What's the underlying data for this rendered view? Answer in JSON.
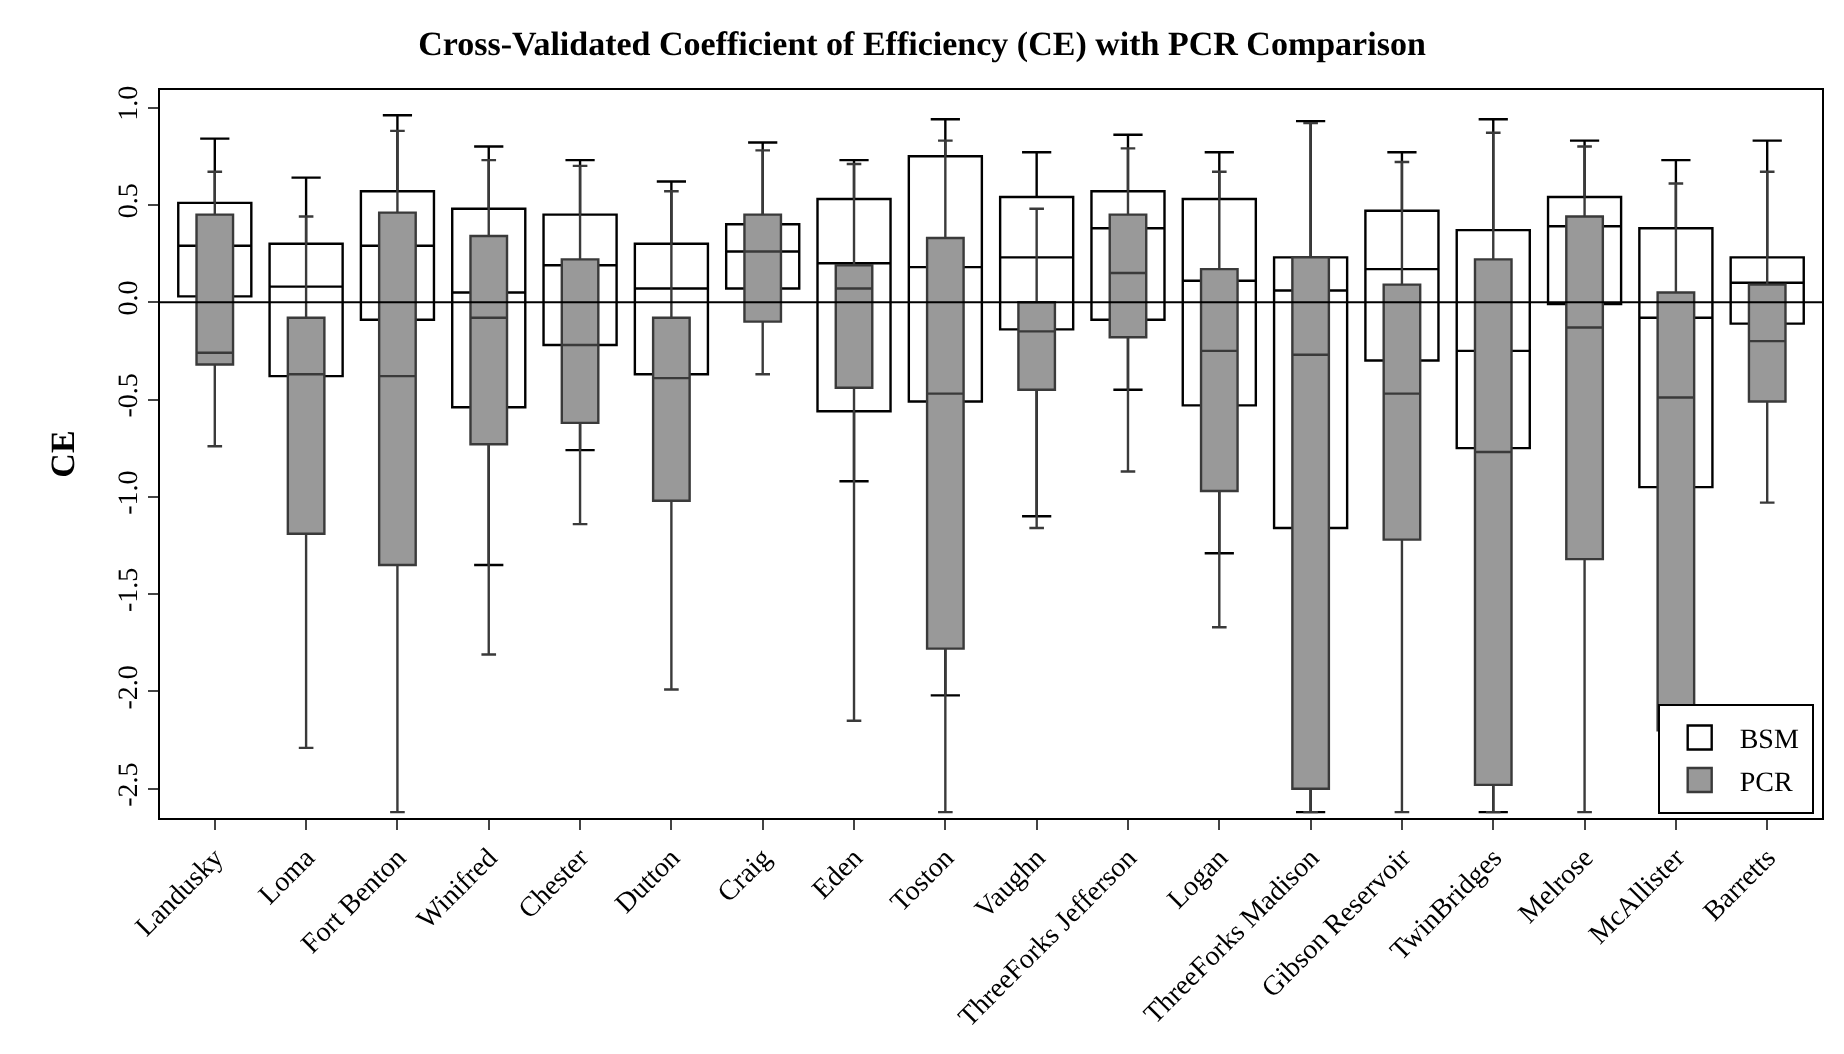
{
  "chart_data": {
    "type": "box",
    "title": "Cross-Validated Coefficient of Efficiency (CE) with PCR Comparison",
    "ylabel": "CE",
    "categories": [
      "Landusky",
      "Loma",
      "Fort Benton",
      "Winifred",
      "Chester",
      "Dutton",
      "Craig",
      "Eden",
      "Toston",
      "Vaughn",
      "ThreeForks Jefferson",
      "Logan",
      "ThreeForks Madison",
      "Gibson Reservoir",
      "TwinBridges",
      "Melrose",
      "McAllister",
      "Barretts"
    ],
    "ylim": [
      -2.65,
      1.09
    ],
    "yticks": [
      -2.5,
      {
        "value": -2,
        "label": "-2.0"
      },
      -1.5,
      {
        "value": -1,
        "label": "-1.0"
      },
      -0.5,
      {
        "value": 0,
        "label": "0.0"
      },
      0.5,
      {
        "value": 1,
        "label": "1.0"
      }
    ],
    "legend": "bottom right",
    "ref_lines": [
      {
        "axis": "y",
        "value": 0,
        "color": "#000000"
      }
    ],
    "series": [
      {
        "name": "BSM",
        "color": "#ffffff",
        "boxes": [
          {
            "low": 0.03,
            "q1": 0.03,
            "median": 0.29,
            "q3": 0.51,
            "high": 0.84
          },
          {
            "low": -0.38,
            "q1": -0.38,
            "median": 0.08,
            "q3": 0.3,
            "high": 0.64
          },
          {
            "low": -0.09,
            "q1": -0.09,
            "median": 0.29,
            "q3": 0.57,
            "high": 0.96
          },
          {
            "low": -1.35,
            "q1": -0.54,
            "median": 0.05,
            "q3": 0.48,
            "high": 0.8
          },
          {
            "low": -0.76,
            "q1": -0.22,
            "median": 0.19,
            "q3": 0.45,
            "high": 0.73
          },
          {
            "low": -0.37,
            "q1": -0.37,
            "median": 0.07,
            "q3": 0.3,
            "high": 0.62
          },
          {
            "low": 0.07,
            "q1": 0.07,
            "median": 0.26,
            "q3": 0.4,
            "high": 0.82
          },
          {
            "low": -0.92,
            "q1": -0.56,
            "median": 0.2,
            "q3": 0.53,
            "high": 0.73
          },
          {
            "low": -2.02,
            "q1": -0.51,
            "median": 0.18,
            "q3": 0.75,
            "high": 0.94
          },
          {
            "low": -1.1,
            "q1": -0.14,
            "median": 0.23,
            "q3": 0.54,
            "high": 0.77
          },
          {
            "low": -0.45,
            "q1": -0.09,
            "median": 0.38,
            "q3": 0.57,
            "high": 0.86
          },
          {
            "low": -1.29,
            "q1": -0.53,
            "median": 0.11,
            "q3": 0.53,
            "high": 0.77
          },
          {
            "low": -2.62,
            "q1": -1.16,
            "median": 0.06,
            "q3": 0.23,
            "high": 0.93
          },
          {
            "low": -0.3,
            "q1": -0.3,
            "median": 0.17,
            "q3": 0.47,
            "high": 0.77
          },
          {
            "low": -2.62,
            "q1": -0.75,
            "median": -0.25,
            "q3": 0.37,
            "high": 0.94
          },
          {
            "low": -0.01,
            "q1": -0.01,
            "median": 0.39,
            "q3": 0.54,
            "high": 0.83
          },
          {
            "low": -2.62,
            "q1": -0.95,
            "median": -0.08,
            "q3": 0.38,
            "high": 0.73
          },
          {
            "low": -0.11,
            "q1": -0.11,
            "median": 0.1,
            "q3": 0.23,
            "high": 0.83
          }
        ]
      },
      {
        "name": "PCR",
        "color": "#999999",
        "boxes": [
          {
            "low": -0.74,
            "q1": -0.32,
            "median": -0.26,
            "q3": 0.45,
            "high": 0.67
          },
          {
            "low": -2.29,
            "q1": -1.19,
            "median": -0.37,
            "q3": -0.08,
            "high": 0.44
          },
          {
            "low": -2.62,
            "q1": -1.35,
            "median": -0.38,
            "q3": 0.46,
            "high": 0.88
          },
          {
            "low": -1.81,
            "q1": -0.73,
            "median": -0.08,
            "q3": 0.34,
            "high": 0.73
          },
          {
            "low": -1.14,
            "q1": -0.62,
            "median": -0.22,
            "q3": 0.22,
            "high": 0.7
          },
          {
            "low": -1.99,
            "q1": -1.02,
            "median": -0.39,
            "q3": -0.08,
            "high": 0.57
          },
          {
            "low": -0.37,
            "q1": -0.1,
            "median": 0.26,
            "q3": 0.45,
            "high": 0.78
          },
          {
            "low": -2.15,
            "q1": -0.44,
            "median": 0.07,
            "q3": 0.19,
            "high": 0.71
          },
          {
            "low": -2.62,
            "q1": -1.78,
            "median": -0.47,
            "q3": 0.33,
            "high": 0.83
          },
          {
            "low": -1.16,
            "q1": -0.45,
            "median": -0.15,
            "q3": 0.0,
            "high": 0.48
          },
          {
            "low": -0.87,
            "q1": -0.18,
            "median": 0.15,
            "q3": 0.45,
            "high": 0.79
          },
          {
            "low": -1.67,
            "q1": -0.97,
            "median": -0.25,
            "q3": 0.17,
            "high": 0.67
          },
          {
            "low": -2.62,
            "q1": -2.5,
            "median": -0.27,
            "q3": 0.23,
            "high": 0.92
          },
          {
            "low": -2.62,
            "q1": -1.22,
            "median": -0.47,
            "q3": 0.09,
            "high": 0.72
          },
          {
            "low": -2.62,
            "q1": -2.48,
            "median": -0.77,
            "q3": 0.22,
            "high": 0.87
          },
          {
            "low": -2.62,
            "q1": -1.32,
            "median": -0.13,
            "q3": 0.44,
            "high": 0.8
          },
          {
            "low": -2.62,
            "q1": -2.2,
            "median": -0.49,
            "q3": 0.05,
            "high": 0.61
          },
          {
            "low": -1.03,
            "q1": -0.51,
            "median": -0.2,
            "q3": 0.09,
            "high": 0.67
          }
        ]
      }
    ]
  }
}
